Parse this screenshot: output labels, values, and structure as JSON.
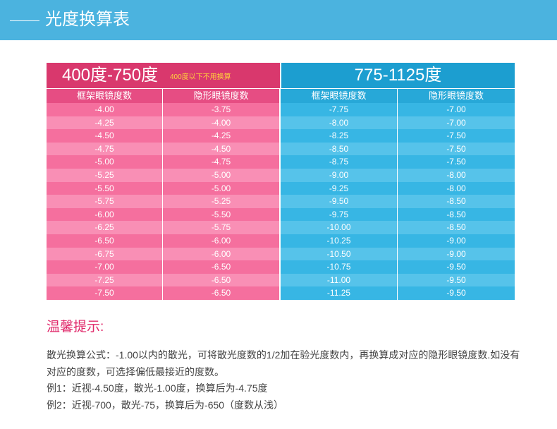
{
  "header": {
    "title": "光度换算表"
  },
  "table": {
    "left_title": "400度-750度",
    "left_note": "400度以下不用换算",
    "right_title": "775-1125度",
    "columns": [
      "框架眼镜度数",
      "隐形眼镜度数",
      "框架眼镜度数",
      "隐形眼镜度数"
    ],
    "rows": [
      [
        "-4.00",
        "-3.75",
        "-7.75",
        "-7.00"
      ],
      [
        "-4.25",
        "-4.00",
        "-8.00",
        "-7.00"
      ],
      [
        "-4.50",
        "-4.25",
        "-8.25",
        "-7.50"
      ],
      [
        "-4.75",
        "-4.50",
        "-8.50",
        "-7.50"
      ],
      [
        "-5.00",
        "-4.75",
        "-8.75",
        "-7.50"
      ],
      [
        "-5.25",
        "-5.00",
        "-9.00",
        "-8.00"
      ],
      [
        "-5.50",
        "-5.00",
        "-9.25",
        "-8.00"
      ],
      [
        "-5.75",
        "-5.25",
        "-9.50",
        "-8.50"
      ],
      [
        "-6.00",
        "-5.50",
        "-9.75",
        "-8.50"
      ],
      [
        "-6.25",
        "-5.75",
        "-10.00",
        "-8.50"
      ],
      [
        "-6.50",
        "-6.00",
        "-10.25",
        "-9.00"
      ],
      [
        "-6.75",
        "-6.00",
        "-10.50",
        "-9.00"
      ],
      [
        "-7.00",
        "-6.50",
        "-10.75",
        "-9.50"
      ],
      [
        "-7.25",
        "-6.50",
        "-11.00",
        "-9.50"
      ],
      [
        "-7.50",
        "-6.50",
        "-11.25",
        "-9.50"
      ]
    ]
  },
  "tips": {
    "title": "温馨提示:",
    "line1": "散光换算公式：-1.00以内的散光，可将散光度数的1/2加在验光度数内，再换算成对应的隐形眼镜度数.如没有对应的度数，可选择偏低最接近的度数。",
    "line2": "例1：近视-4.50度，散光-1.00度，换算后为-4.75度",
    "line3": "例2：近视-700，散光-75，换算后为-650（度数从浅）"
  },
  "colors": {
    "banner": "#4bb3df",
    "pink_header": "#d9386d",
    "blue_header": "#1c9ed0",
    "tips_title": "#e0286a"
  }
}
